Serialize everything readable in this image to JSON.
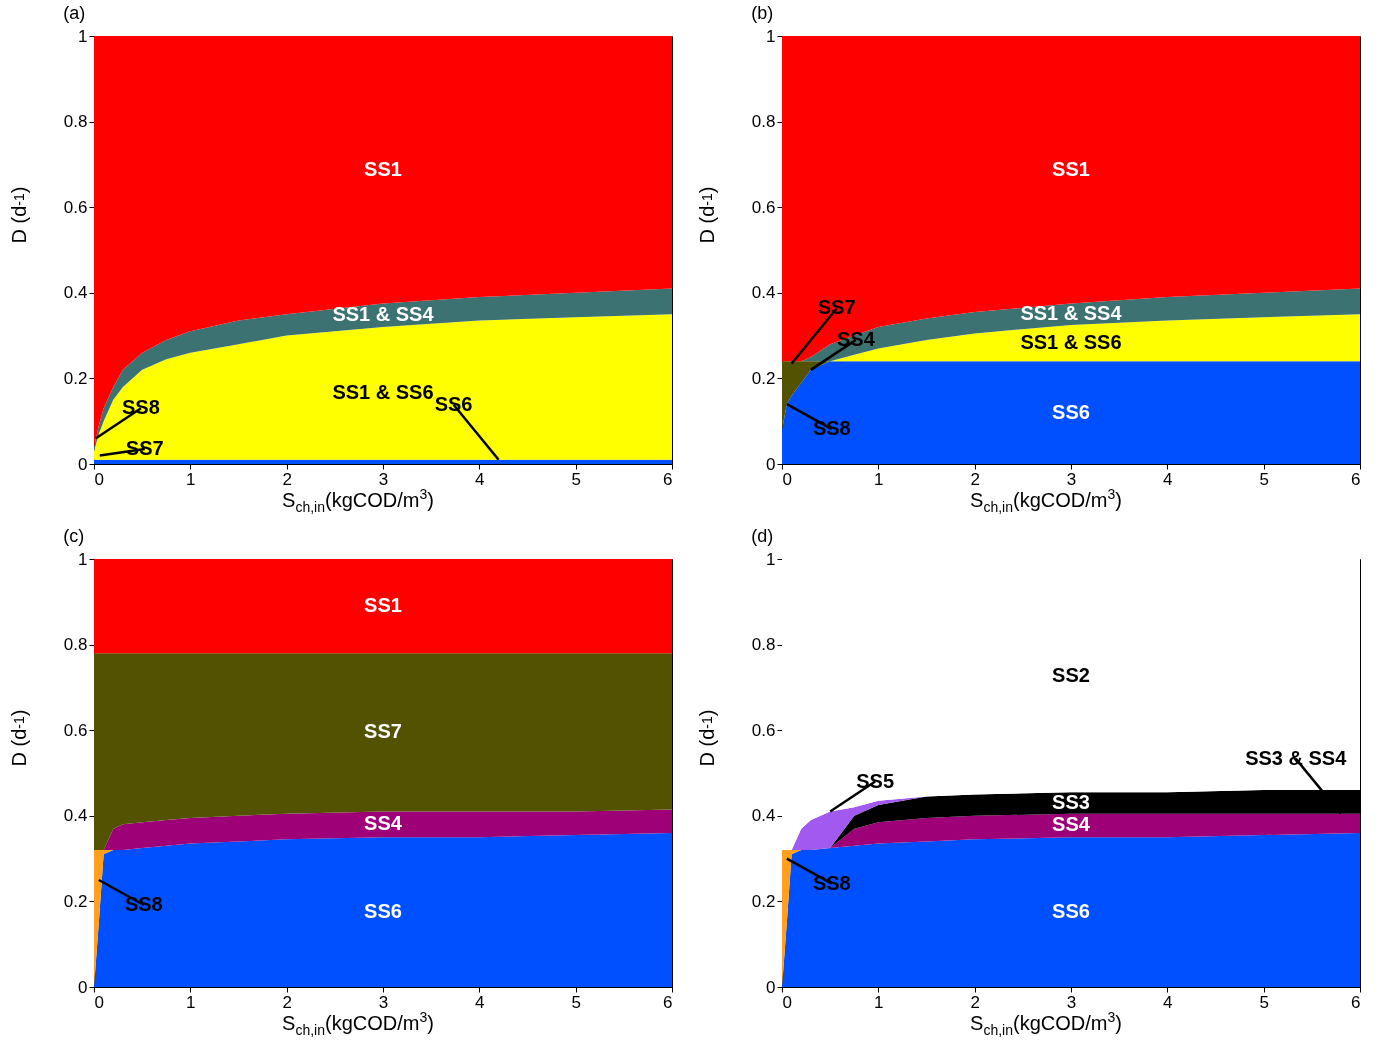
{
  "chart_data": [
    {
      "type": "area",
      "title": "(a)",
      "xlabel": "S$_{ch,in}$(kgCOD/m$^{3}$)",
      "ylabel": "D (d$^{-1}$)",
      "stacked": true,
      "x": [
        0,
        0.05,
        0.1,
        0.2,
        0.3,
        0.5,
        0.75,
        1,
        1.5,
        2,
        3,
        4,
        5,
        6
      ],
      "xlim": [
        0,
        6
      ],
      "xticks": [
        0,
        1,
        2,
        3,
        4,
        5,
        6
      ],
      "ylim": [
        0,
        1
      ],
      "yticks": [
        0,
        0.2,
        0.4,
        0.6,
        0.8,
        1
      ],
      "series": [
        {
          "color": "#0050ff",
          "values": [
            0.01,
            0.01,
            0.01,
            0.01,
            0.01,
            0.01,
            0.01,
            0.01,
            0.01,
            0.01,
            0.01,
            0.01,
            0.01,
            0.01
          ]
        },
        {
          "name": "SS1 & SS6",
          "color": "#ffff00",
          "values": [
            0.02,
            0.06,
            0.09,
            0.14,
            0.17,
            0.21,
            0.235,
            0.25,
            0.27,
            0.29,
            0.31,
            0.325,
            0.333,
            0.34
          ]
        },
        {
          "name": "SS1 & SS4",
          "color": "#3d7272",
          "values": [
            0.01,
            0.02,
            0.03,
            0.03,
            0.04,
            0.04,
            0.045,
            0.05,
            0.055,
            0.05,
            0.055,
            0.055,
            0.057,
            0.06
          ]
        },
        {
          "name": "SS1",
          "color": "#ff0000",
          "values": [
            0.96,
            0.91,
            0.87,
            0.82,
            0.78,
            0.74,
            0.71,
            0.69,
            0.665,
            0.65,
            0.625,
            0.61,
            0.6,
            0.59
          ]
        }
      ],
      "annotations": [
        {
          "text": "SS7",
          "x": 0.06,
          "y": 0.02
        },
        {
          "text": "SS8",
          "x": 0.02,
          "y": 0.06
        },
        {
          "text": "SS6",
          "x": 4.2,
          "y": 0.01
        }
      ]
    },
    {
      "type": "area",
      "title": "(b)",
      "xlabel": "S$_{ch,in}$(kgCOD/m$^{3}$)",
      "ylabel": "D (d$^{-1}$)",
      "stacked": true,
      "x": [
        0,
        0.05,
        0.1,
        0.2,
        0.3,
        0.5,
        0.75,
        1,
        1.5,
        2,
        3,
        4,
        5,
        6
      ],
      "xlim": [
        0,
        6
      ],
      "xticks": [
        0,
        1,
        2,
        3,
        4,
        5,
        6
      ],
      "ylim": [
        0,
        1
      ],
      "yticks": [
        0,
        0.2,
        0.4,
        0.6,
        0.8,
        1
      ],
      "series": [
        {
          "name": "SS6",
          "color": "#0050ff",
          "values": [
            0.08,
            0.14,
            0.16,
            0.19,
            0.22,
            0.24,
            0.24,
            0.24,
            0.24,
            0.24,
            0.24,
            0.24,
            0.24,
            0.24
          ]
        },
        {
          "color": "#525200",
          "values": [
            0.16,
            0.1,
            0.08,
            0.05,
            0.02,
            0,
            null,
            null,
            null,
            null,
            null,
            null,
            null,
            null
          ]
        },
        {
          "name": "SS1 & SS6",
          "color": "#ffff00",
          "values": [
            null,
            null,
            null,
            null,
            null,
            0,
            0.015,
            0.03,
            0.05,
            0.065,
            0.085,
            0.095,
            0.103,
            0.11
          ]
        },
        {
          "name": "SS1 & SS4",
          "color": "#3d7272",
          "values": [
            null,
            null,
            null,
            0,
            0.01,
            0.04,
            0.045,
            0.05,
            0.05,
            0.05,
            0.05,
            0.055,
            0.057,
            0.06
          ]
        },
        {
          "name": "SS1",
          "color": "#ff0000",
          "values": [
            0.76,
            0.76,
            0.76,
            0.76,
            0.75,
            0.72,
            0.7,
            0.68,
            0.66,
            0.645,
            0.625,
            0.61,
            0.6,
            0.59
          ]
        }
      ],
      "annotations": [
        {
          "text": "SS8",
          "x": 0.05,
          "y": 0.14
        },
        {
          "text": "SS4",
          "x": 0.3,
          "y": 0.22
        },
        {
          "text": "SS7",
          "x": 0.1,
          "y": 0.235
        }
      ]
    },
    {
      "type": "area",
      "title": "(c)",
      "xlabel": "S$_{ch,in}$(kgCOD/m$^{3}$)",
      "ylabel": "D (d$^{-1}$)",
      "stacked": true,
      "x": [
        0,
        0.05,
        0.1,
        0.2,
        0.3,
        0.5,
        0.75,
        1,
        1.5,
        2,
        3,
        4,
        5,
        6
      ],
      "xlim": [
        0,
        6
      ],
      "xticks": [
        0,
        1,
        2,
        3,
        4,
        5,
        6
      ],
      "ylim": [
        0,
        1
      ],
      "yticks": [
        0,
        0.2,
        0.4,
        0.6,
        0.8,
        1
      ],
      "series": [
        {
          "name": "SS6",
          "color": "#0050ff",
          "values": [
            0,
            0.15,
            0.31,
            0.32,
            0.32,
            0.325,
            0.33,
            0.335,
            0.34,
            0.345,
            0.35,
            0.35,
            0.355,
            0.36
          ]
        },
        {
          "color": "#ff9f1a",
          "values": [
            0.32,
            0.17,
            0.01,
            0,
            null,
            null,
            null,
            null,
            null,
            null,
            null,
            null,
            null,
            null
          ]
        },
        {
          "name": "SS4",
          "color": "#9e0078",
          "values": [
            null,
            null,
            0,
            0.05,
            0.06,
            0.06,
            0.06,
            0.06,
            0.06,
            0.06,
            0.06,
            0.06,
            0.055,
            0.055
          ]
        },
        {
          "name": "SS7",
          "color": "#525200",
          "values": [
            0.46,
            0.46,
            0.46,
            0.41,
            0.4,
            0.395,
            0.39,
            0.385,
            0.38,
            0.375,
            0.37,
            0.37,
            0.37,
            0.365
          ]
        },
        {
          "name": "SS1",
          "color": "#ff0000",
          "values": [
            0.22,
            0.22,
            0.22,
            0.22,
            0.22,
            0.22,
            0.22,
            0.22,
            0.22,
            0.22,
            0.22,
            0.22,
            0.22,
            0.22
          ]
        }
      ],
      "annotations": [
        {
          "text": "SS8",
          "x": 0.05,
          "y": 0.25
        }
      ]
    },
    {
      "type": "area",
      "title": "(d)",
      "xlabel": "S$_{ch,in}$(kgCOD/m$^{3}$)",
      "ylabel": "D (d$^{-1}$)",
      "stacked": true,
      "x": [
        0,
        0.05,
        0.1,
        0.2,
        0.3,
        0.5,
        0.75,
        1,
        1.5,
        2,
        3,
        4,
        5,
        6
      ],
      "xlim": [
        0,
        6
      ],
      "xticks": [
        0,
        1,
        2,
        3,
        4,
        5,
        6
      ],
      "ylim": [
        0,
        1
      ],
      "yticks": [
        0,
        0.2,
        0.4,
        0.6,
        0.8,
        1
      ],
      "series": [
        {
          "name": "SS6",
          "color": "#0050ff",
          "values": [
            0,
            0.15,
            0.31,
            0.32,
            0.32,
            0.325,
            0.33,
            0.335,
            0.34,
            0.345,
            0.35,
            0.35,
            0.355,
            0.36
          ]
        },
        {
          "color": "#ff9f1a",
          "values": [
            0.32,
            0.17,
            0.01,
            0,
            null,
            null,
            null,
            null,
            null,
            null,
            null,
            null,
            null,
            null
          ]
        },
        {
          "name": "SS4",
          "color": "#9e0078",
          "values": [
            null,
            null,
            null,
            null,
            null,
            0,
            0.04,
            0.05,
            0.055,
            0.055,
            0.055,
            0.055,
            0.05,
            0.045
          ]
        },
        {
          "name": "SS3",
          "color": "#000000",
          "values": [
            null,
            null,
            null,
            null,
            null,
            0,
            0.03,
            0.04,
            0.05,
            0.05,
            0.05,
            0.05,
            0.055,
            0.055
          ]
        },
        {
          "color": "#a259f0",
          "values": [
            null,
            null,
            0,
            0.05,
            0.07,
            0.085,
            0.02,
            0.01,
            0,
            null,
            null,
            null,
            null,
            null
          ]
        },
        {
          "name": "SS2",
          "color": "#ffffff",
          "values": [
            0.68,
            0.68,
            0.68,
            0.63,
            0.61,
            0.59,
            0.58,
            0.565,
            0.555,
            0.55,
            0.545,
            0.545,
            0.54,
            0.54
          ]
        }
      ],
      "annotations": [
        {
          "text": "SS8",
          "x": 0.05,
          "y": 0.3
        },
        {
          "text": "SS5",
          "x": 0.5,
          "y": 0.41
        },
        {
          "text": "SS3 & SS4",
          "x": 5.8,
          "y": 0.405
        }
      ]
    }
  ]
}
